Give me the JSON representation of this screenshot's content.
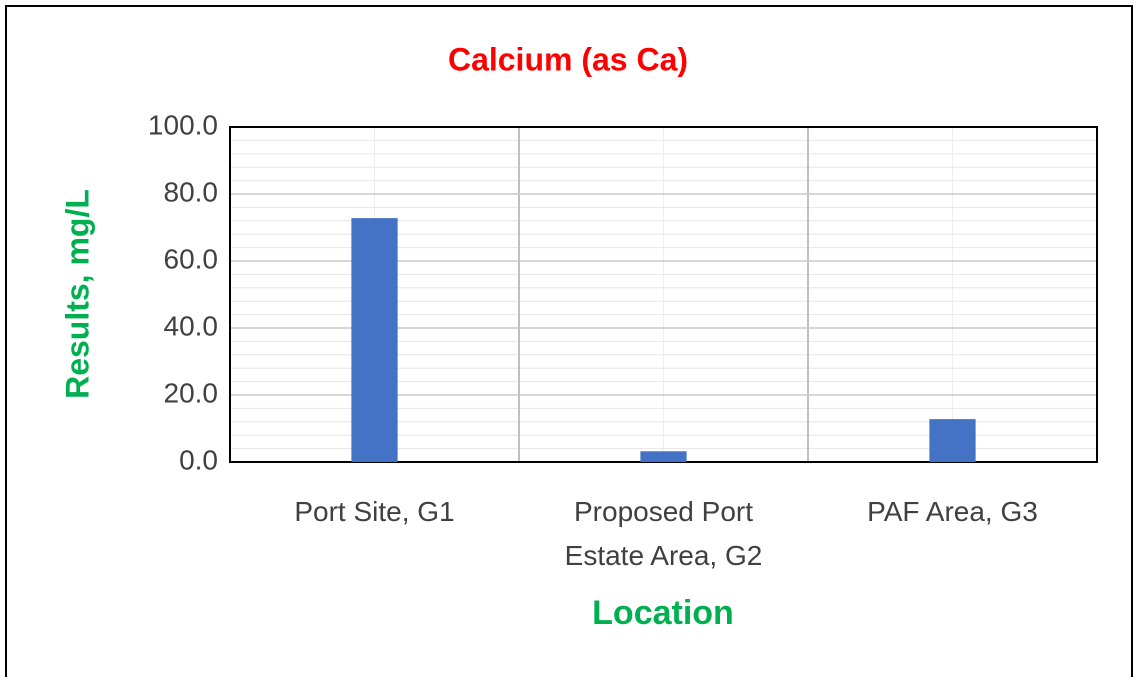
{
  "chart_data": {
    "type": "bar",
    "title": "Calcium (as Ca)",
    "x_label": "Location",
    "y_label": "Results, mg/L",
    "categories": [
      "Port Site, G1",
      "Proposed Port Estate Area, G2",
      "PAF Area, G3"
    ],
    "values": [
      72.8,
      3.2,
      12.8
    ],
    "color": "#4472c4",
    "ylim": [
      0,
      100
    ],
    "yticks": [
      {
        "value": 0,
        "label": "0.0"
      },
      {
        "value": 20,
        "label": "20.0"
      },
      {
        "value": 40,
        "label": "40.0"
      },
      {
        "value": 60,
        "label": "60.0"
      },
      {
        "value": 80,
        "label": "80.0"
      },
      {
        "value": 100,
        "label": "100.0"
      }
    ],
    "grid": true
  }
}
